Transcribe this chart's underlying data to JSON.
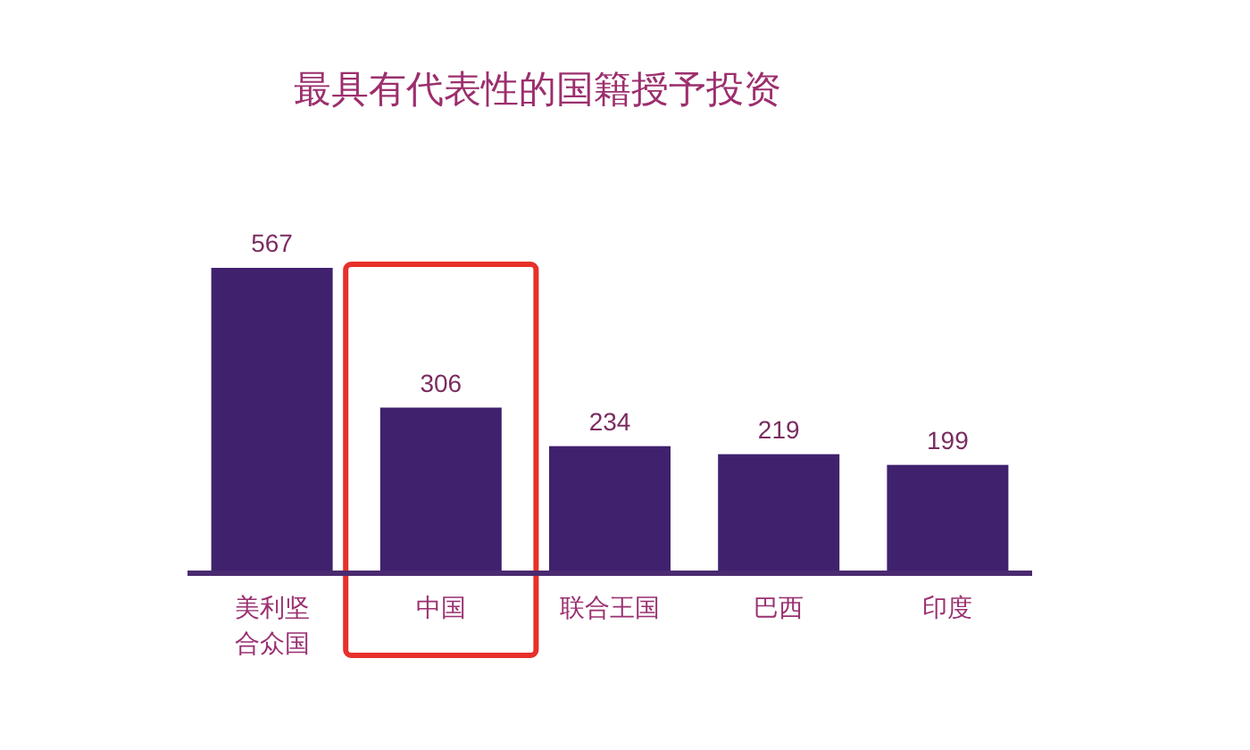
{
  "chart_data": {
    "type": "bar",
    "title": "最具有代表性的国籍授予投资",
    "categories": [
      "美利坚合众国",
      "中国",
      "联合王国",
      "巴西",
      "印度"
    ],
    "values": [
      567,
      306,
      234,
      219,
      199
    ],
    "color": "#40216e",
    "data_labels": true,
    "bands": [
      {
        "axis": "x",
        "from": "中国",
        "to": "中国",
        "color": "#e8302a"
      }
    ]
  }
}
